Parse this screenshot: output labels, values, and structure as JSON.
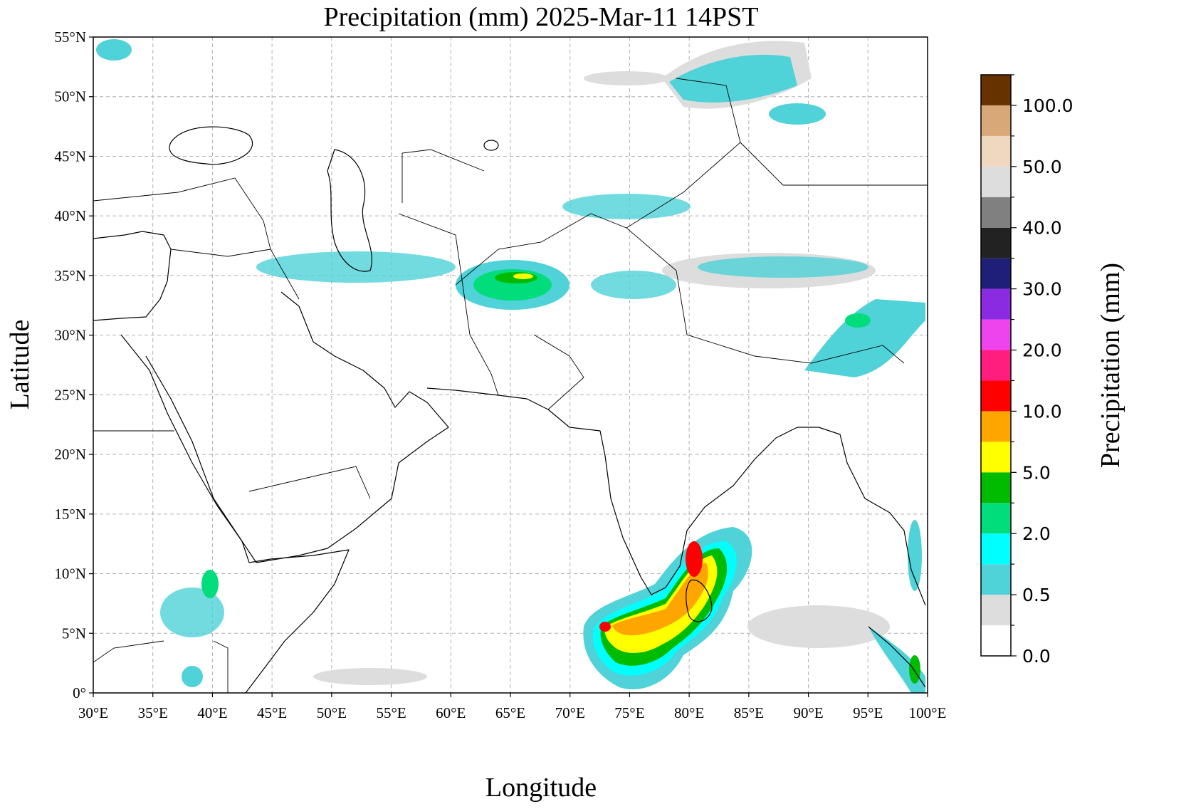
{
  "chart_data": {
    "type": "map",
    "title": "Precipitation (mm)  2025-Mar-11 14PST",
    "x_label": "Longitude",
    "y_label": "Latitude",
    "xlim": [
      30,
      100
    ],
    "ylim": [
      0,
      55
    ],
    "grid": true,
    "xticks": [
      {
        "value": 30,
        "label": "30°E"
      },
      {
        "value": 35,
        "label": "35°E"
      },
      {
        "value": 40,
        "label": "40°E"
      },
      {
        "value": 45,
        "label": "45°E"
      },
      {
        "value": 50,
        "label": "50°E"
      },
      {
        "value": 55,
        "label": "55°E"
      },
      {
        "value": 60,
        "label": "60°E"
      },
      {
        "value": 65,
        "label": "65°E"
      },
      {
        "value": 70,
        "label": "70°E"
      },
      {
        "value": 75,
        "label": "75°E"
      },
      {
        "value": 80,
        "label": "80°E"
      },
      {
        "value": 85,
        "label": "85°E"
      },
      {
        "value": 90,
        "label": "90°E"
      },
      {
        "value": 95,
        "label": "95°E"
      },
      {
        "value": 100,
        "label": "100°E"
      }
    ],
    "yticks": [
      {
        "value": 0,
        "label": "0°"
      },
      {
        "value": 5,
        "label": "5°N"
      },
      {
        "value": 10,
        "label": "10°N"
      },
      {
        "value": 15,
        "label": "15°N"
      },
      {
        "value": 20,
        "label": "20°N"
      },
      {
        "value": 25,
        "label": "25°N"
      },
      {
        "value": 30,
        "label": "30°N"
      },
      {
        "value": 35,
        "label": "35°N"
      },
      {
        "value": 40,
        "label": "40°N"
      },
      {
        "value": 45,
        "label": "45°N"
      },
      {
        "value": 50,
        "label": "50°N"
      },
      {
        "value": 55,
        "label": "55°N"
      }
    ],
    "colorbar": {
      "label": "Precipitation (mm)",
      "levels": [
        0,
        0.25,
        0.5,
        1,
        2,
        3,
        5,
        7.5,
        10,
        15,
        20,
        25,
        30,
        35,
        40,
        45,
        50,
        75,
        100,
        125
      ],
      "colors": [
        "#ffffff",
        "#dddddd",
        "#4fd2d8",
        "#00ffff",
        "#00dd7a",
        "#00bb00",
        "#ffff00",
        "#ffa500",
        "#ff0000",
        "#ff1e7e",
        "#ee44ee",
        "#8a2be2",
        "#1f1f7a",
        "#222222",
        "#808080",
        "#dddddd",
        "#f0d8c0",
        "#d8a878",
        "#663300"
      ],
      "ticks": [
        {
          "value": 0,
          "label": "0.0"
        },
        {
          "value": 0.5,
          "label": "0.5"
        },
        {
          "value": 2,
          "label": "2.0"
        },
        {
          "value": 5,
          "label": "5.0"
        },
        {
          "value": 10,
          "label": "10.0"
        },
        {
          "value": 20,
          "label": "20.0"
        },
        {
          "value": 30,
          "label": "30.0"
        },
        {
          "value": 40,
          "label": "40.0"
        },
        {
          "value": 50,
          "label": "50.0"
        },
        {
          "value": 100,
          "label": "100.0"
        }
      ]
    }
  }
}
